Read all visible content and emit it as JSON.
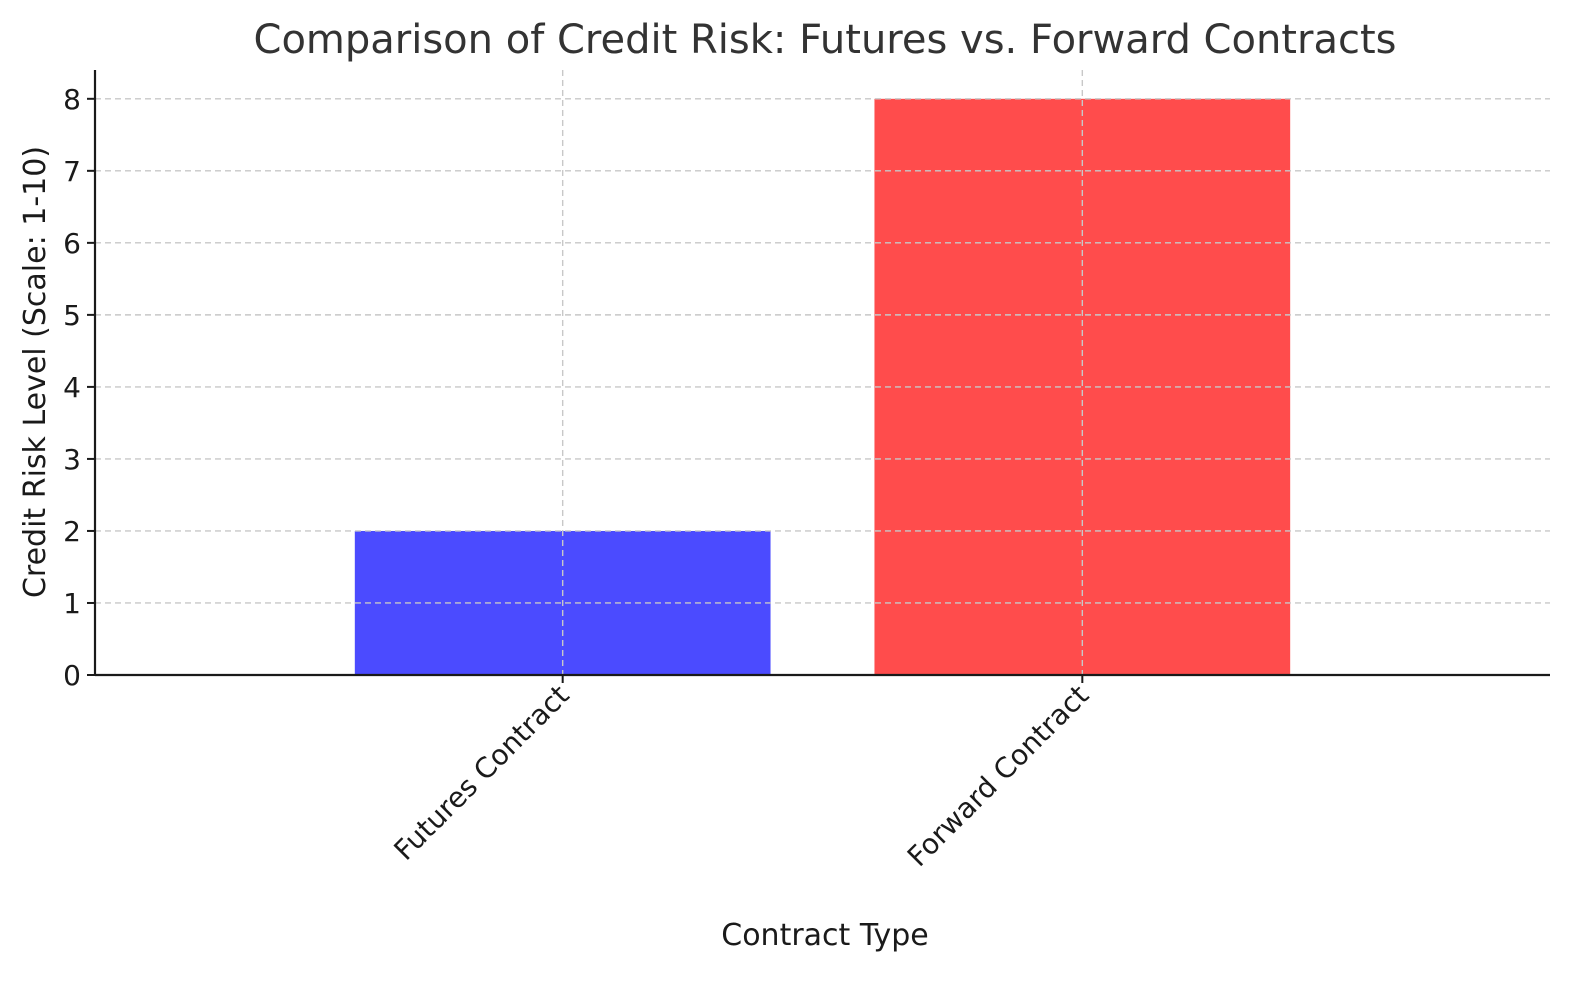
{
  "chart_data": {
    "type": "bar",
    "title": "Comparison of Credit Risk: Futures vs. Forward Contracts",
    "xlabel": "Contract Type",
    "ylabel": "Credit Risk Level (Scale: 1-10)",
    "categories": [
      "Futures Contract",
      "Forward Contract"
    ],
    "values": [
      2,
      8
    ],
    "colors": [
      "#4b4bff",
      "#ff4c4c"
    ],
    "ylim": [
      0,
      8.4
    ],
    "yticks": [
      0,
      1,
      2,
      3,
      4,
      5,
      6,
      7,
      8
    ],
    "grid": true,
    "legend": "none"
  }
}
